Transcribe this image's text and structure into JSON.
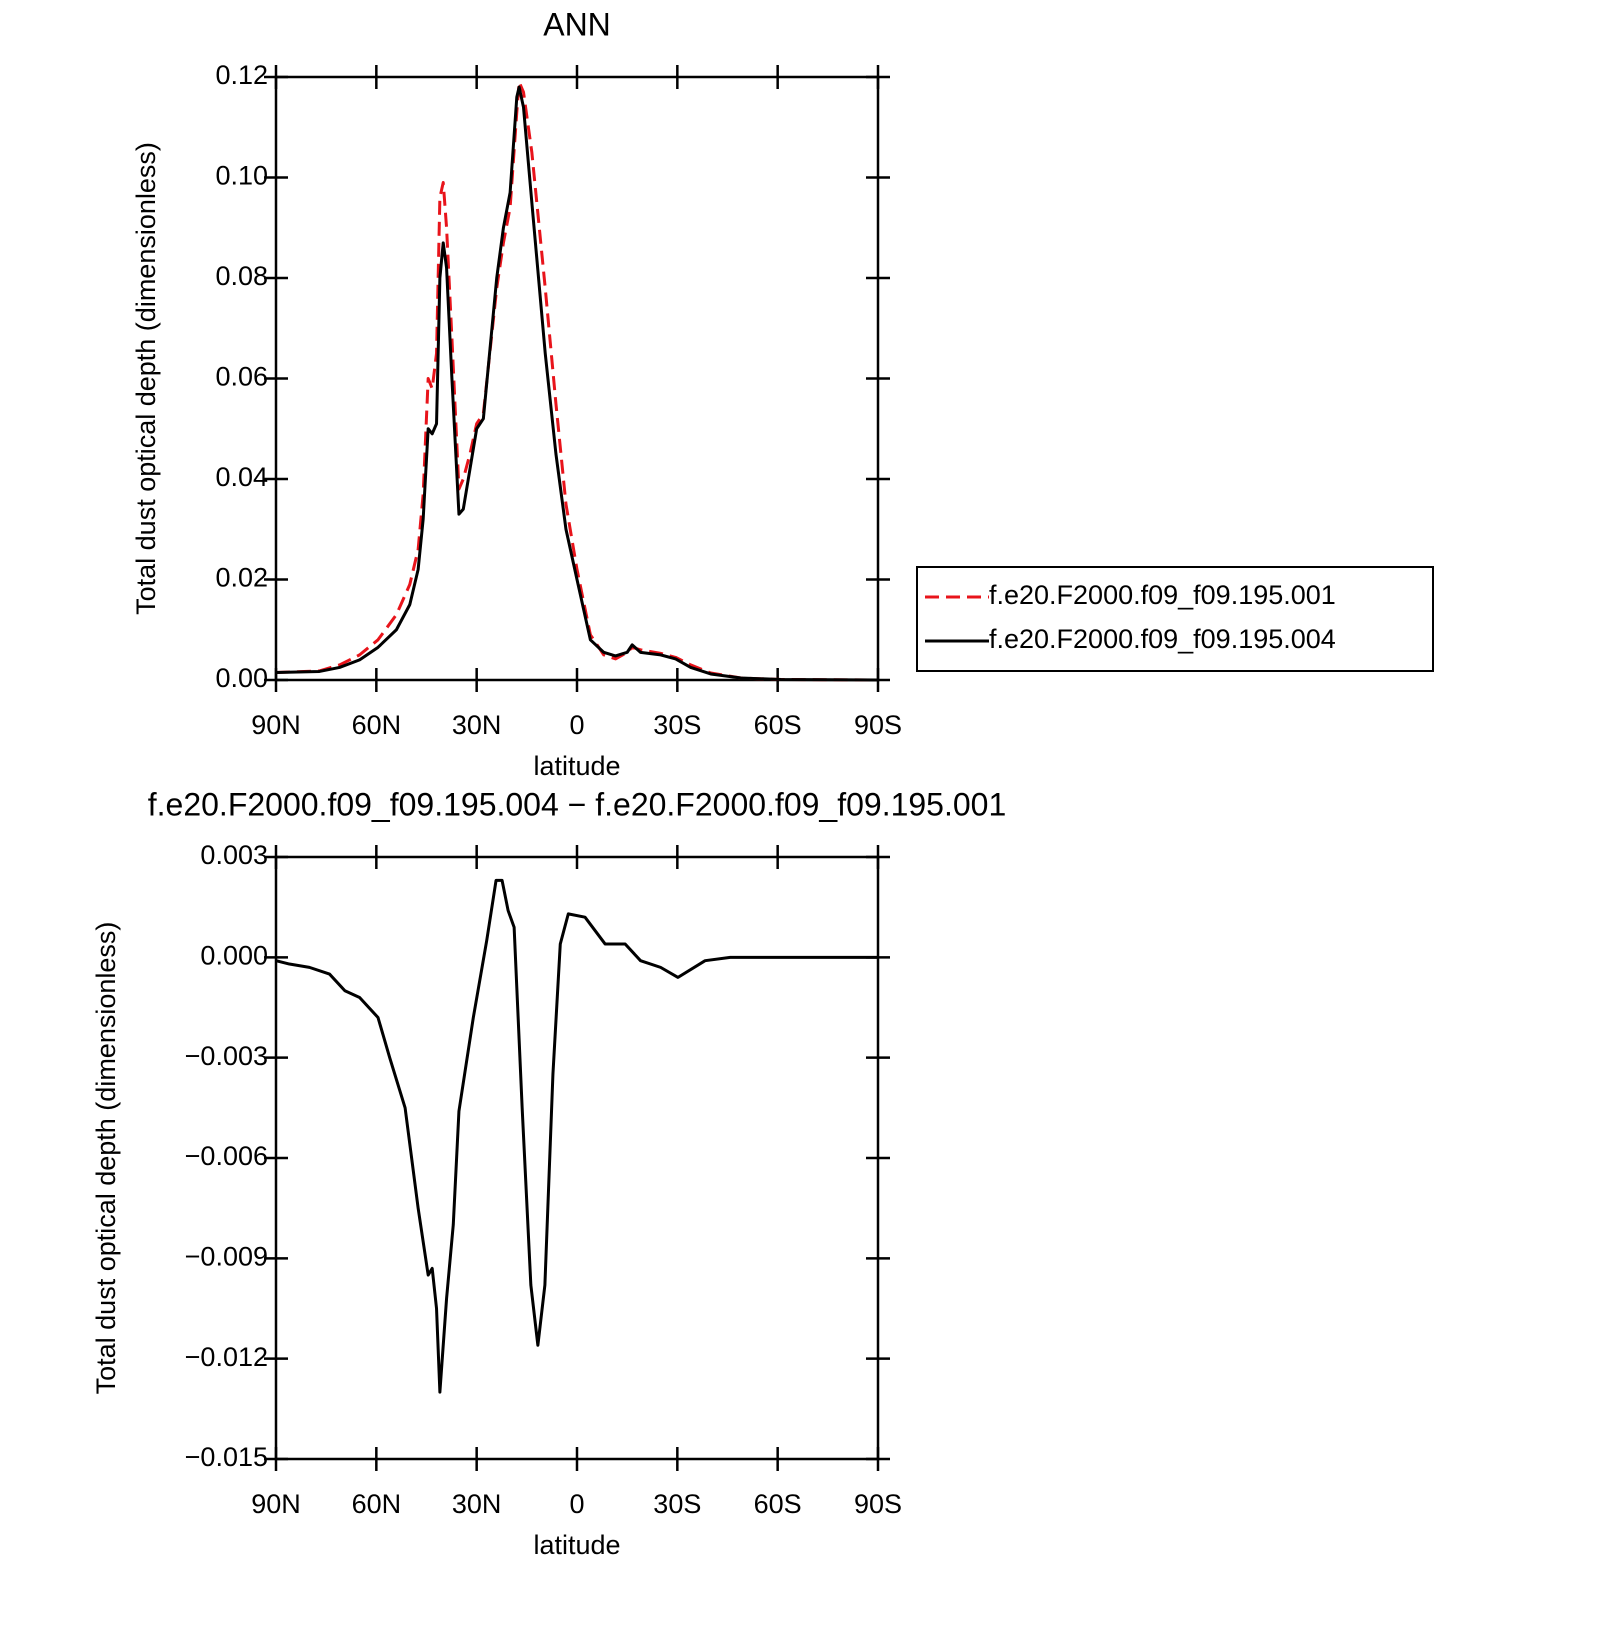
{
  "chart_data": [
    {
      "type": "line",
      "title": "ANN",
      "xlabel": "latitude",
      "ylabel": "Total dust optical depth (dimensionless)",
      "x": [
        90,
        77,
        71,
        65,
        59.5,
        54,
        50,
        47.5,
        46,
        44.5,
        43.3,
        42,
        41,
        40,
        39,
        37.4,
        35.3,
        34,
        32,
        30,
        28,
        24,
        22,
        20,
        18,
        17.3,
        16,
        13.5,
        9.5,
        6.3,
        3.3,
        0,
        -4,
        -8,
        -11.5,
        -15,
        -16.5,
        -19,
        -25,
        -29.5,
        -34,
        -40,
        -49,
        -61,
        -90
      ],
      "series": [
        {
          "name": "f.e20.F2000.f09_f09.195.001",
          "color": "#e8141b",
          "line_style": "dashed",
          "values": [
            0.0015,
            0.0018,
            0.003,
            0.005,
            0.008,
            0.013,
            0.019,
            0.026,
            0.037,
            0.06,
            0.058,
            0.065,
            0.096,
            0.099,
            0.09,
            0.068,
            0.038,
            0.04,
            0.045,
            0.051,
            0.053,
            0.078,
            0.087,
            0.094,
            0.113,
            0.119,
            0.117,
            0.105,
            0.078,
            0.055,
            0.035,
            0.022,
            0.009,
            0.005,
            0.0042,
            0.0055,
            0.0065,
            0.006,
            0.0053,
            0.0045,
            0.003,
            0.0014,
            0.0004,
            0.0001,
            0
          ]
        },
        {
          "name": "f.e20.F2000.f09_f09.195.004",
          "color": "#000000",
          "line_style": "solid",
          "values": [
            0.0015,
            0.0017,
            0.0025,
            0.004,
            0.0065,
            0.01,
            0.015,
            0.022,
            0.032,
            0.05,
            0.049,
            0.051,
            0.08,
            0.087,
            0.082,
            0.06,
            0.033,
            0.034,
            0.042,
            0.05,
            0.052,
            0.08,
            0.09,
            0.097,
            0.116,
            0.118,
            0.114,
            0.095,
            0.065,
            0.045,
            0.03,
            0.02,
            0.008,
            0.0055,
            0.0048,
            0.0055,
            0.007,
            0.0055,
            0.005,
            0.0042,
            0.0025,
            0.0012,
            0.0004,
            0.0001,
            0
          ]
        }
      ],
      "xlim": [
        90,
        -90
      ],
      "xticks": [
        {
          "value": 90,
          "label": "90N"
        },
        {
          "value": 60,
          "label": "60N"
        },
        {
          "value": 30,
          "label": "30N"
        },
        0,
        {
          "value": -30,
          "label": "30S"
        },
        {
          "value": -60,
          "label": "60S"
        },
        {
          "value": -90,
          "label": "90S"
        }
      ],
      "ylim": [
        0,
        0.12
      ],
      "yticks": [
        {
          "value": 0,
          "label": "0.00"
        },
        0.02,
        0.04,
        0.06,
        0.08,
        {
          "value": 0.1,
          "label": "0.10"
        },
        0.12
      ],
      "legend": "right"
    },
    {
      "type": "line",
      "title": "f.e20.F2000.f09_f09.195.004 − f.e20.F2000.f09_f09.195.001",
      "xlabel": "latitude",
      "ylabel": "Total dust optical depth (dimensionless)",
      "x": [
        90,
        86,
        80,
        74,
        69.4,
        65,
        59.5,
        56,
        51.4,
        47.5,
        44.5,
        43.3,
        42,
        41,
        39,
        37,
        35.3,
        31,
        27,
        24.2,
        22.4,
        20.6,
        18.8,
        16.4,
        13.8,
        11.7,
        9.6,
        7.2,
        5,
        2.6,
        -2.4,
        -8.4,
        -14.4,
        -19,
        -25,
        -30.2,
        -38.3,
        -45.8,
        -90
      ],
      "series": [
        {
          "color": "#000000",
          "line_style": "solid",
          "values": [
            -0.0001,
            -0.0002,
            -0.0003,
            -0.0005,
            -0.001,
            -0.0012,
            -0.0018,
            -0.003,
            -0.0045,
            -0.0075,
            -0.0095,
            -0.0093,
            -0.0105,
            -0.013,
            -0.0102,
            -0.008,
            -0.0046,
            -0.0018,
            0.0005,
            0.0023,
            0.0023,
            0.0014,
            0.0009,
            -0.0045,
            -0.0098,
            -0.0116,
            -0.0098,
            -0.0035,
            0.0004,
            0.0013,
            0.0012,
            0.0004,
            0.0004,
            -0.0001,
            -0.0003,
            -0.0006,
            -0.0001,
            0,
            0
          ]
        }
      ],
      "xlim": [
        90,
        -90
      ],
      "xticks": [
        {
          "value": 90,
          "label": "90N"
        },
        {
          "value": 60,
          "label": "60N"
        },
        {
          "value": 30,
          "label": "30N"
        },
        0,
        {
          "value": -30,
          "label": "30S"
        },
        {
          "value": -60,
          "label": "60S"
        },
        {
          "value": -90,
          "label": "90S"
        }
      ],
      "ylim": [
        -0.015,
        0.003
      ],
      "yticks": [
        {
          "value": 0.003,
          "label": "0.003"
        },
        {
          "value": 0,
          "label": "0.000"
        },
        {
          "value": -0.003,
          "label": "−0.003"
        },
        {
          "value": -0.006,
          "label": "−0.006"
        },
        {
          "value": -0.009,
          "label": "−0.009"
        },
        {
          "value": -0.012,
          "label": "−0.012"
        },
        {
          "value": -0.015,
          "label": "−0.015"
        }
      ]
    }
  ]
}
